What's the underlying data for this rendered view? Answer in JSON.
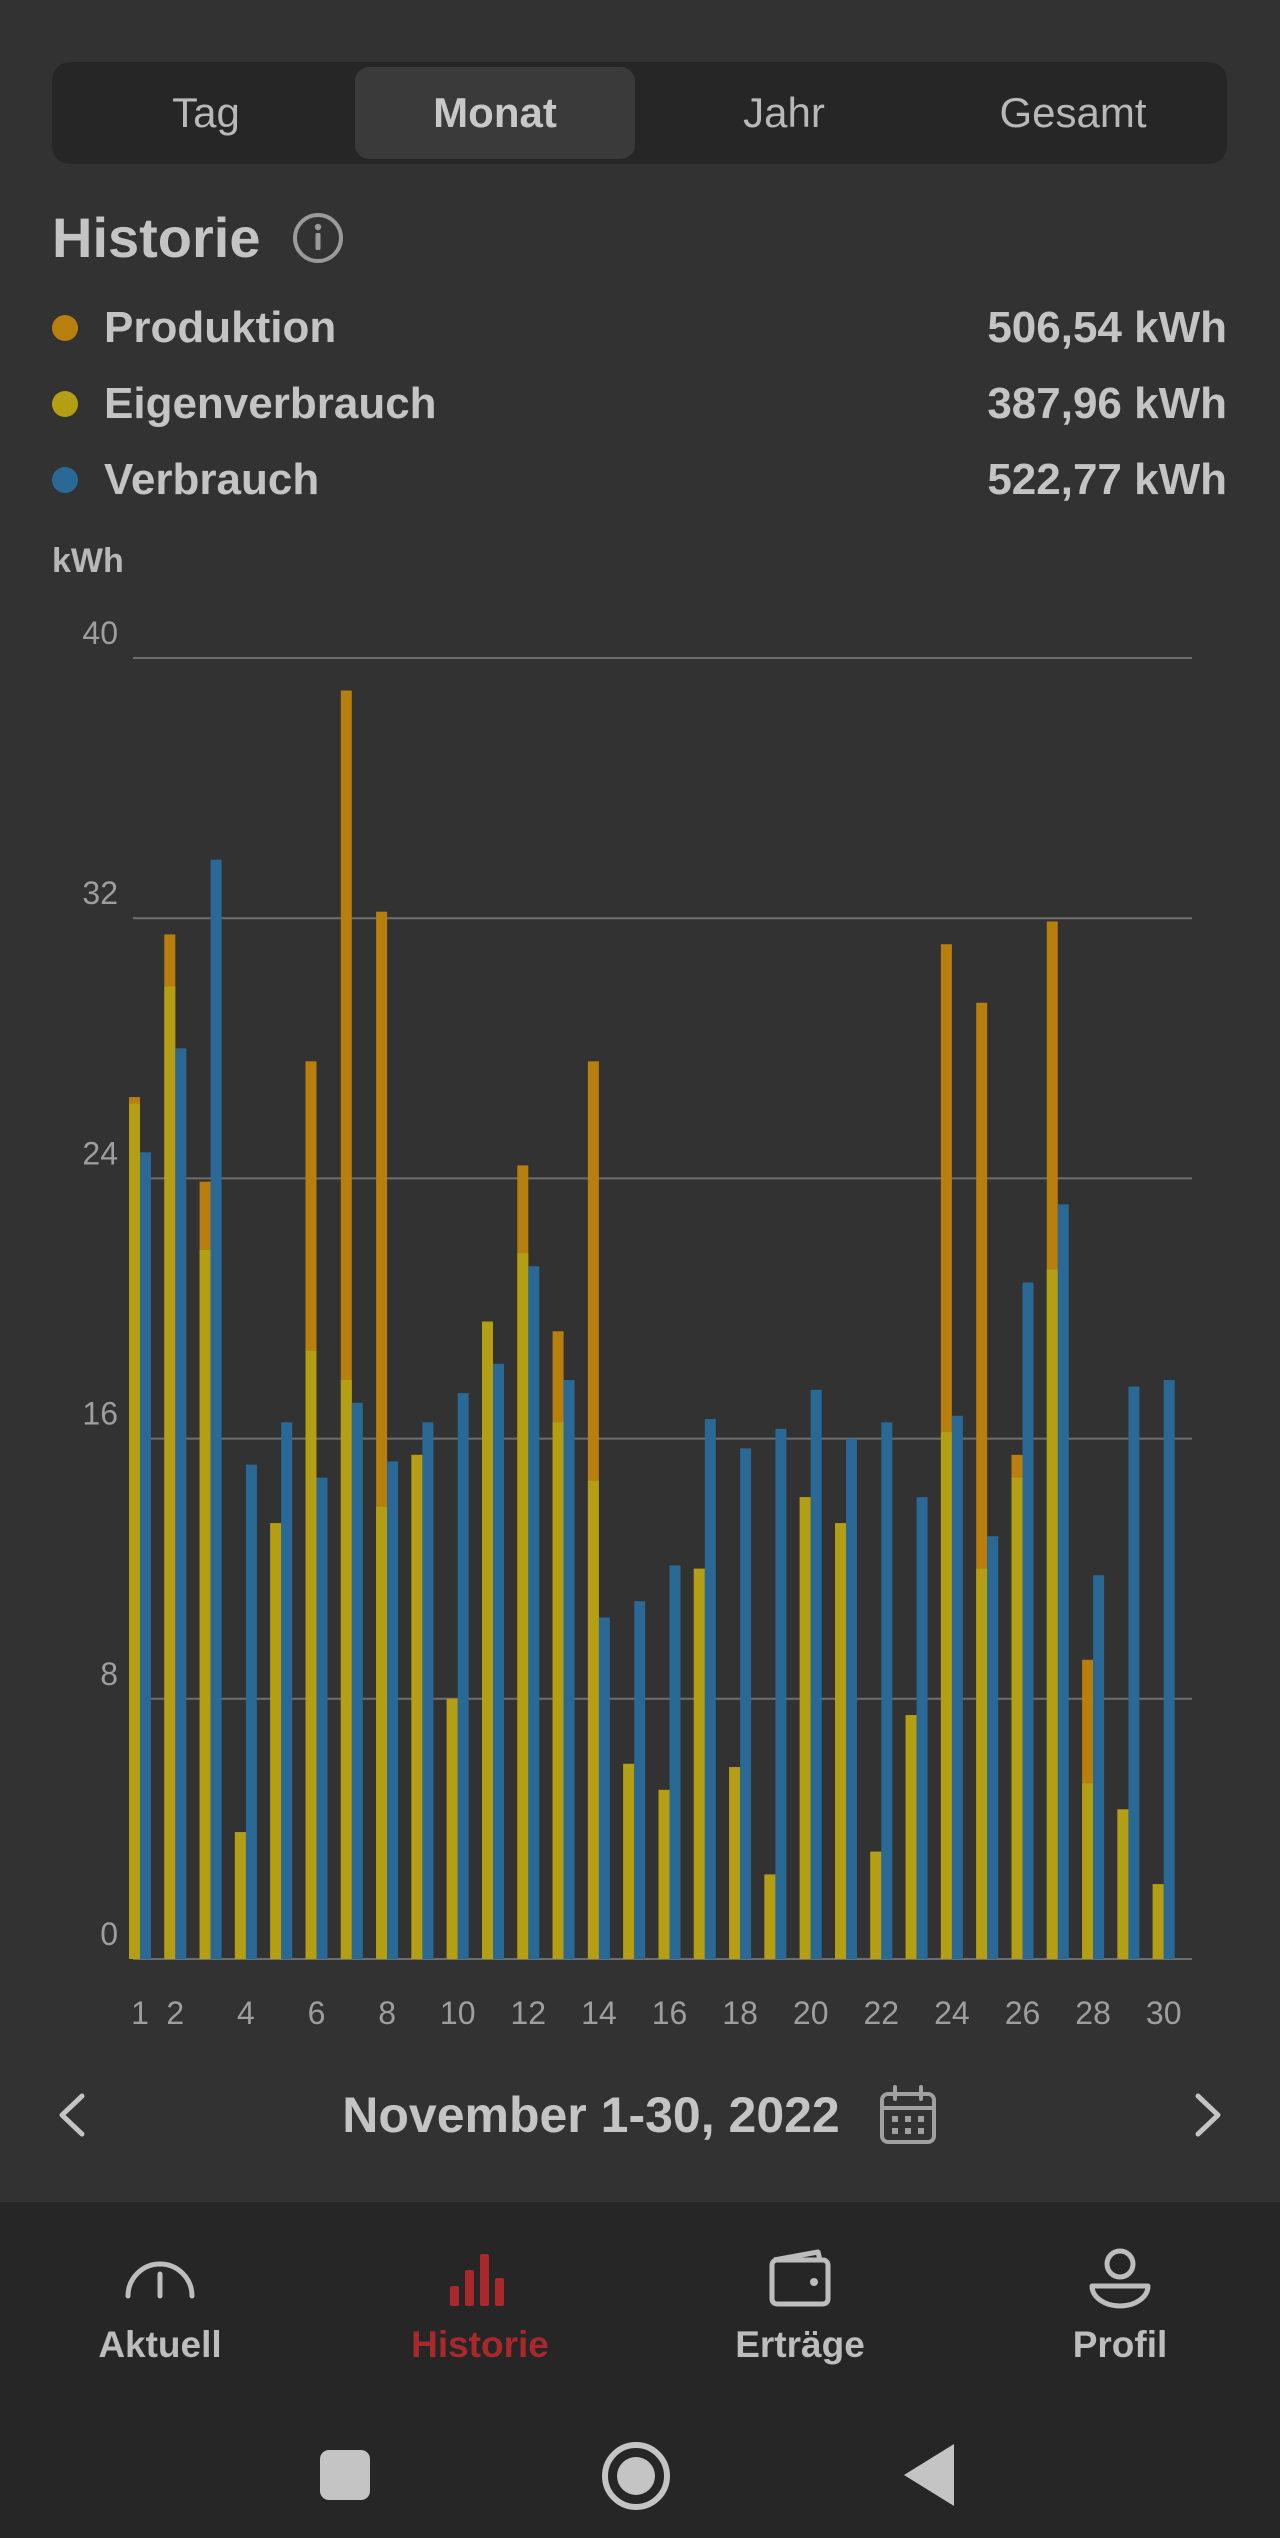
{
  "tabs": [
    {
      "label": "Tag",
      "active": false
    },
    {
      "label": "Monat",
      "active": true
    },
    {
      "label": "Jahr",
      "active": false
    },
    {
      "label": "Gesamt",
      "active": false
    }
  ],
  "history": {
    "title": "Historie",
    "info_icon": "info-icon",
    "legend": [
      {
        "label": "Produktion",
        "value": "506,54 kWh",
        "color": "#b87e0e"
      },
      {
        "label": "Eigenverbrauch",
        "value": "387,96 kWh",
        "color": "#b49e14"
      },
      {
        "label": "Verbrauch",
        "value": "522,77 kWh",
        "color": "#2a6896"
      }
    ]
  },
  "chart_data": {
    "type": "bar",
    "ylabel": "kWh",
    "ylim": [
      0,
      40
    ],
    "yticks": [
      0,
      8,
      16,
      24,
      32,
      40
    ],
    "x": [
      1,
      2,
      3,
      4,
      5,
      6,
      7,
      8,
      9,
      10,
      11,
      12,
      13,
      14,
      15,
      16,
      17,
      18,
      19,
      20,
      21,
      22,
      23,
      24,
      25,
      26,
      27,
      28,
      29,
      30
    ],
    "xtick_labels": [
      "1",
      "2",
      "4",
      "6",
      "8",
      "10",
      "12",
      "14",
      "16",
      "18",
      "20",
      "22",
      "24",
      "26",
      "28",
      "30"
    ],
    "grid": true,
    "series": [
      {
        "name": "Produktion",
        "color": "#b87e0e",
        "values": [
          26.5,
          31.5,
          23.9,
          3.9,
          13.4,
          27.6,
          39.0,
          32.2,
          15.5,
          8.0,
          19.6,
          24.4,
          19.3,
          27.6,
          6.0,
          5.2,
          12.0,
          5.9,
          2.6,
          14.2,
          13.4,
          3.3,
          7.5,
          31.2,
          29.4,
          15.5,
          31.9,
          9.2,
          4.6,
          2.3
        ]
      },
      {
        "name": "Eigenverbrauch",
        "color": "#b49e14",
        "values": [
          26.3,
          29.9,
          21.8,
          3.9,
          13.4,
          18.7,
          17.8,
          13.9,
          15.5,
          8.0,
          19.6,
          21.7,
          16.5,
          14.7,
          6.0,
          5.2,
          12.0,
          5.9,
          2.6,
          14.2,
          13.4,
          3.3,
          7.5,
          16.2,
          12.0,
          14.8,
          21.2,
          5.4,
          4.6,
          2.3
        ]
      },
      {
        "name": "Verbrauch",
        "color": "#2a6896",
        "values": [
          24.8,
          28.0,
          33.8,
          15.2,
          16.5,
          14.8,
          17.1,
          15.3,
          16.5,
          17.4,
          18.3,
          21.3,
          17.8,
          10.5,
          11.0,
          12.1,
          16.6,
          15.7,
          16.3,
          17.5,
          16.0,
          16.5,
          14.2,
          16.7,
          13.0,
          20.8,
          23.2,
          11.8,
          17.6,
          17.8
        ]
      }
    ]
  },
  "date_nav": {
    "prev_icon": "chevron-left-icon",
    "label": "November 1-30, 2022",
    "calendar_icon": "calendar-icon",
    "next_icon": "chevron-right-icon"
  },
  "bottom_nav": [
    {
      "label": "Aktuell",
      "icon": "gauge-icon",
      "active": false
    },
    {
      "label": "Historie",
      "icon": "bar-chart-icon",
      "active": true
    },
    {
      "label": "Erträge",
      "icon": "wallet-icon",
      "active": false
    },
    {
      "label": "Profil",
      "icon": "user-icon",
      "active": false
    }
  ],
  "accent_color": "#a8282c"
}
